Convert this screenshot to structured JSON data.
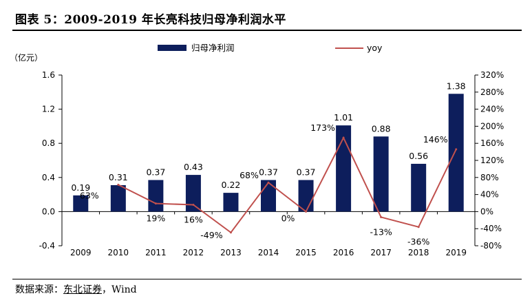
{
  "figure": {
    "title": "图表 5：2009-2019 年长亮科技归母净利润水平",
    "source_prefix": "数据来源：",
    "source_link": "东北证券",
    "source_suffix": "，Wind"
  },
  "chart_data": {
    "type": "bar",
    "title": "",
    "ylabel": "（亿元）",
    "categories": [
      "2009",
      "2010",
      "2011",
      "2012",
      "2013",
      "2014",
      "2015",
      "2016",
      "2017",
      "2018",
      "2019"
    ],
    "series": [
      {
        "name": "归母净利润",
        "type": "bar",
        "axis": "left",
        "color": "#0d1e5c",
        "values": [
          0.19,
          0.31,
          0.37,
          0.43,
          0.22,
          0.37,
          0.37,
          1.01,
          0.88,
          0.56,
          1.38
        ],
        "labels": [
          "0.19",
          "0.31",
          "0.37",
          "0.43",
          "0.22",
          "0.37",
          "0.37",
          "1.01",
          "0.88",
          "0.56",
          "1.38"
        ]
      },
      {
        "name": "yoy",
        "type": "line",
        "axis": "right",
        "color": "#c0504d",
        "values": [
          null,
          63,
          19,
          16,
          -49,
          68,
          0,
          173,
          -13,
          -36,
          146
        ],
        "labels": [
          "",
          "63%",
          "19%",
          "16%",
          "-49%",
          "68%",
          "0%",
          "173%",
          "-13%",
          "-36%",
          "146%"
        ]
      }
    ],
    "left_axis": {
      "min": -0.4,
      "max": 1.6,
      "ticks": [
        "-0.4",
        "0.0",
        "0.4",
        "0.8",
        "1.2",
        "1.6"
      ]
    },
    "right_axis": {
      "min": -80,
      "max": 320,
      "ticks": [
        "-80%",
        "-40%",
        "0%",
        "40%",
        "80%",
        "120%",
        "160%",
        "200%",
        "240%",
        "280%",
        "320%"
      ]
    },
    "legend_position": "top",
    "grid": false
  }
}
